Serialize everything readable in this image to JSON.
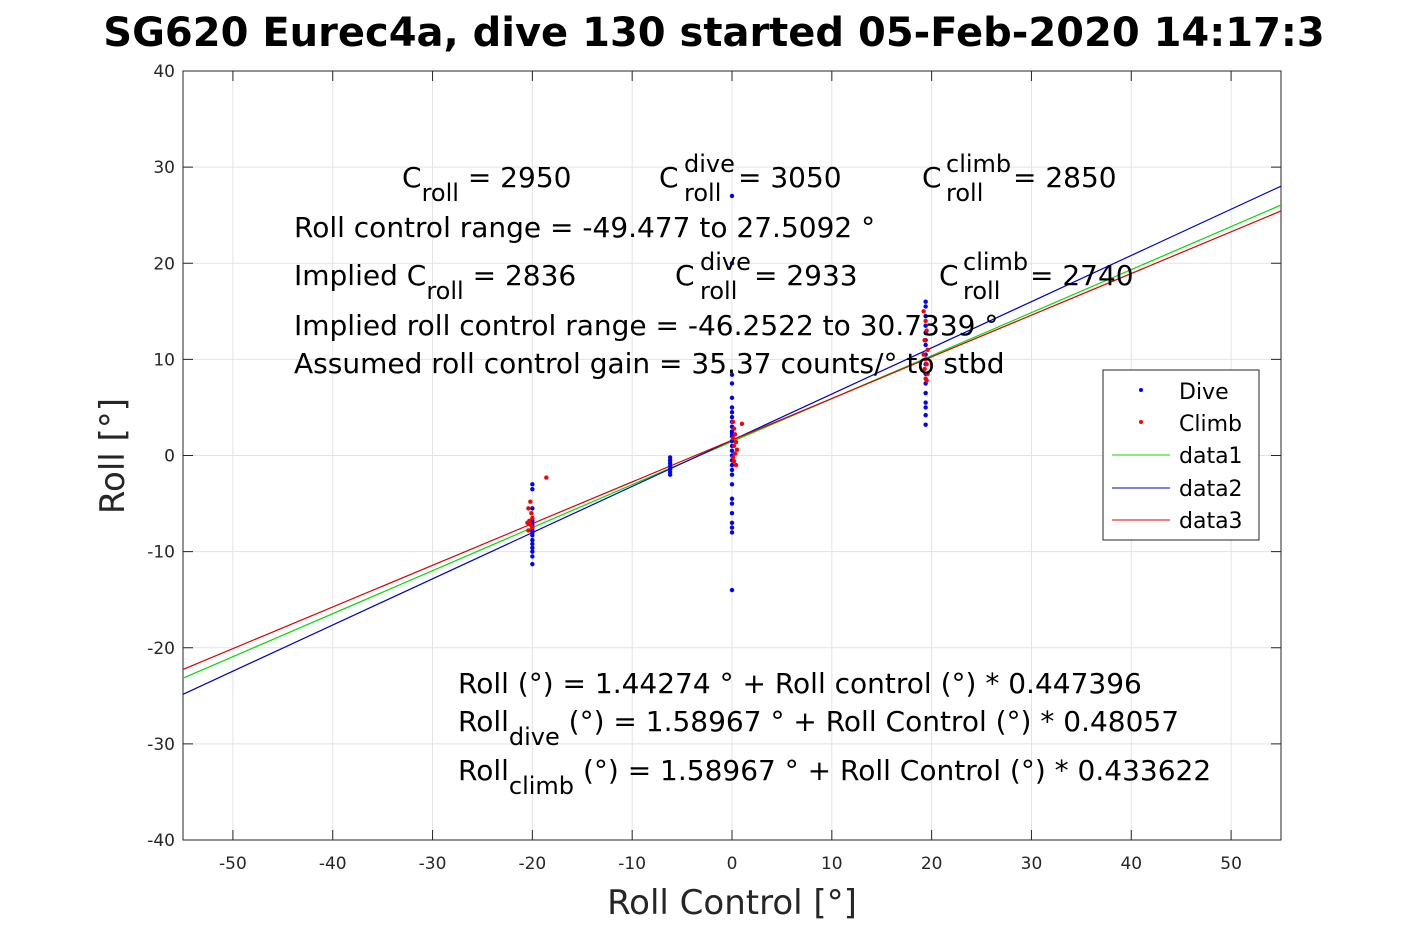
{
  "chart_data": {
    "type": "scatter",
    "title": "SG620 Eurec4a, dive 130 started 05-Feb-2020 14:17:3",
    "xlabel": "Roll Control [°]",
    "ylabel": "Roll [°]",
    "xlim": [
      -55,
      55
    ],
    "ylim": [
      -40,
      40
    ],
    "xticks": [
      -50,
      -40,
      -30,
      -20,
      -10,
      0,
      10,
      20,
      30,
      40,
      50
    ],
    "yticks": [
      -40,
      -30,
      -20,
      -10,
      0,
      10,
      20,
      30,
      40
    ],
    "grid": true,
    "legend_position": "right",
    "series": [
      {
        "name": "Dive",
        "kind": "points",
        "color": "#0000ff",
        "x": [
          -20,
          -20,
          -20,
          -20,
          -20,
          -20,
          -20,
          -20,
          -20,
          -20,
          -20,
          -20,
          -20,
          -20,
          -20,
          -6.2,
          -6.2,
          -6.2,
          -6.2,
          -6.2,
          -6.2,
          -6.2,
          0,
          0,
          0,
          0,
          0,
          0,
          0,
          0,
          0,
          0,
          0,
          0,
          0,
          0,
          0,
          0,
          0,
          0,
          0,
          0,
          0,
          0,
          0,
          0,
          0,
          0,
          0,
          0,
          0,
          19.4,
          19.4,
          19.4,
          19.4,
          19.4,
          19.4,
          19.4,
          19.4,
          19.4,
          19.4,
          19.4,
          19.4,
          19.4,
          19.4,
          19.4,
          19.4
        ],
        "y": [
          -3,
          -3.5,
          -5.5,
          -6.8,
          -7.5,
          -8,
          -8.3,
          -8.8,
          -9.2,
          -9.6,
          -10,
          -10.5,
          -11.3,
          -7.2,
          -7.8,
          -0.2,
          -0.5,
          -0.8,
          -1.1,
          -1.4,
          -1.7,
          -2,
          27,
          20,
          8.4,
          7.5,
          6,
          5,
          4.5,
          4,
          3.5,
          3,
          2.5,
          2,
          1.5,
          1,
          0.5,
          0,
          -0.5,
          -1,
          -2,
          -3,
          -4.5,
          -5,
          -6,
          -7,
          -7.5,
          -8,
          -14,
          -1.5,
          2.3,
          16,
          15.5,
          14.5,
          13.5,
          12.8,
          12,
          11.5,
          10.5,
          9.5,
          8.5,
          7.5,
          6.5,
          5.5,
          5,
          4.2,
          3.2
        ]
      },
      {
        "name": "Climb",
        "kind": "points",
        "color": "#ff0000",
        "x": [
          -18.6,
          -20.2,
          -20.4,
          -20.1,
          -20,
          -20.3,
          -20.5,
          -20.2,
          -20,
          -20.4,
          0.1,
          0.2,
          0.3,
          0.1,
          0.4,
          0.2,
          0.5,
          0.3,
          0.1,
          0.2,
          1,
          0.4,
          19.2,
          19.4,
          19.5,
          19.3,
          19.6,
          19.2,
          19.4,
          19.5,
          19.3,
          19.6,
          19.4,
          19.5
        ],
        "y": [
          -2.3,
          -4.8,
          -5.5,
          -6,
          -6.5,
          -6.8,
          -7,
          -7.2,
          -7.5,
          -7.8,
          3.5,
          2.8,
          2.2,
          1.8,
          1.4,
          1,
          0.6,
          0.2,
          -0.2,
          -0.6,
          3.3,
          -1,
          15,
          14,
          13,
          12,
          11,
          10.5,
          10,
          9.5,
          9,
          8.5,
          8,
          7.8
        ]
      },
      {
        "name": "data1",
        "kind": "line",
        "color": "#00dd00",
        "intercept": 1.44274,
        "slope": 0.447396,
        "xrange": [
          -55,
          55
        ]
      },
      {
        "name": "data2",
        "kind": "line",
        "color": "#0000cc",
        "intercept": 1.58967,
        "slope": 0.48057,
        "xrange": [
          -55,
          55
        ]
      },
      {
        "name": "data3",
        "kind": "line",
        "color": "#dd0000",
        "intercept": 1.58967,
        "slope": 0.433622,
        "xrange": [
          -55,
          55
        ]
      }
    ],
    "annotations": {
      "c_roll": {
        "main": "C",
        "sub": "roll",
        "rest": " = 2950"
      },
      "c_roll_dive": {
        "main": "C",
        "sup": "dive",
        "sub": "roll",
        "rest": " = 3050"
      },
      "c_roll_climb": {
        "main": "C",
        "sup": "climb",
        "sub": "roll",
        "rest": " = 2850"
      },
      "roll_control_range": "Roll control range = -49.477 to 27.5092 °",
      "implied_c_roll": {
        "main": "Implied C",
        "sub": "roll",
        "rest": " = 2836"
      },
      "implied_c_roll_dive": {
        "main": "C",
        "sup": "dive",
        "sub": "roll",
        "rest": " = 2933"
      },
      "implied_c_roll_climb": {
        "main": "C",
        "sup": "climb",
        "sub": "roll",
        "rest": " = 2740"
      },
      "implied_range": "Implied roll control range = -46.2522 to 30.7339 °",
      "gain": "Assumed roll control gain = 35.37 counts/° to stbd",
      "fit_all": "Roll (°) = 1.44274 ° + Roll control (°) * 0.447396",
      "fit_dive": {
        "main": "Roll",
        "sub": "dive",
        "rest": " (°) = 1.58967 ° + Roll Control (°) * 0.48057"
      },
      "fit_climb": {
        "main": "Roll",
        "sub": "climb",
        "rest": " (°) = 1.58967 ° + Roll Control (°) * 0.433622"
      }
    }
  }
}
